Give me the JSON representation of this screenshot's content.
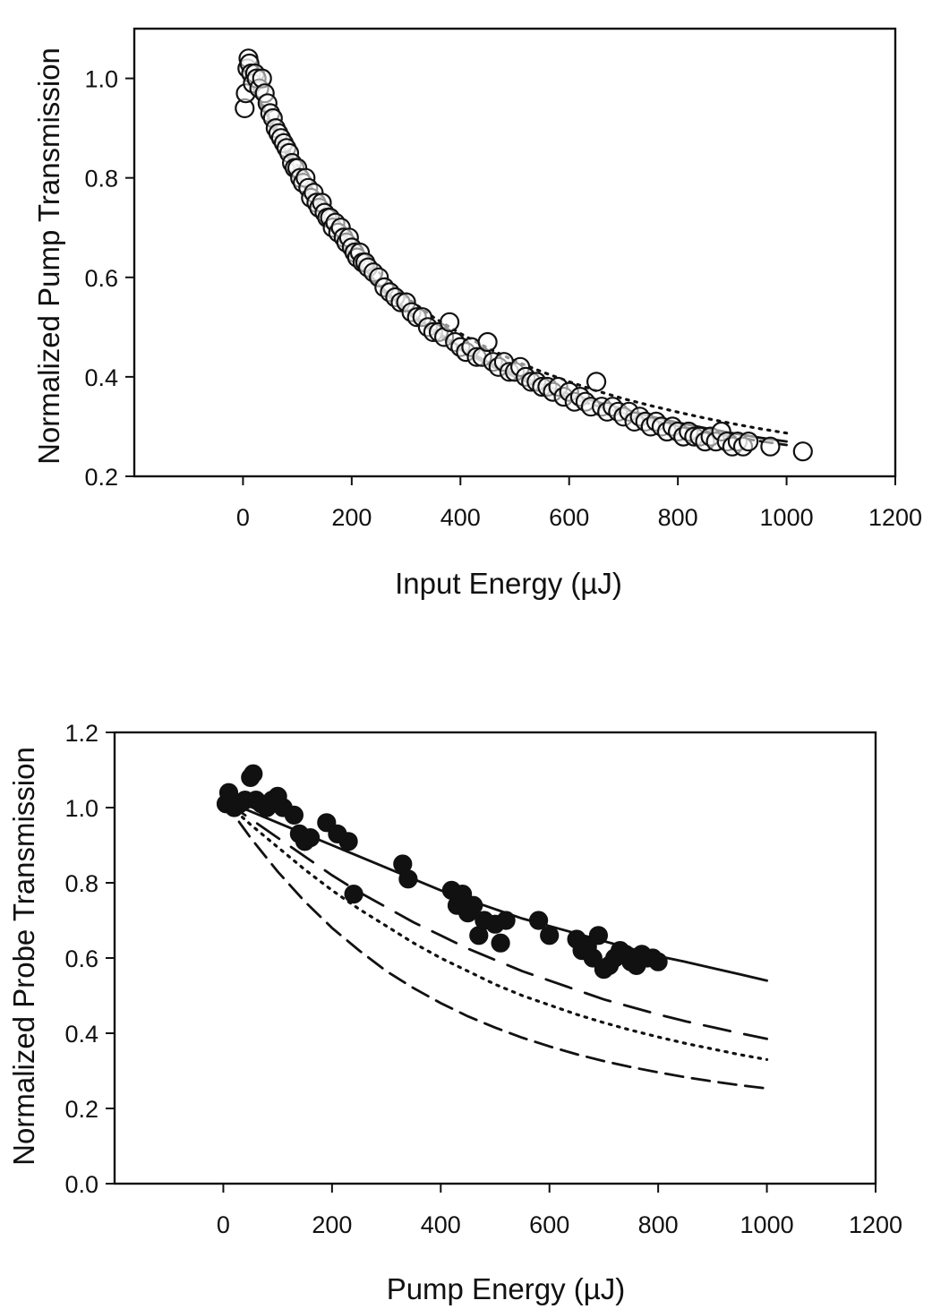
{
  "chart_data": [
    {
      "type": "scatter",
      "title": "",
      "xlabel": "Input Energy (µJ)",
      "ylabel": "Normalized Pump Transmission",
      "xlim": [
        -200,
        1200
      ],
      "ylim": [
        0.2,
        1.1
      ],
      "xticks": [
        "0",
        "200",
        "400",
        "600",
        "800",
        "1000",
        "1200"
      ],
      "yticks": [
        "0.2",
        "0.4",
        "0.6",
        "0.8",
        "1.0"
      ],
      "grid": false,
      "legend": "none",
      "series": [
        {
          "style": "open-circles",
          "x": [
            3,
            5,
            8,
            10,
            12,
            15,
            18,
            22,
            25,
            30,
            35,
            40,
            45,
            50,
            55,
            60,
            65,
            70,
            75,
            80,
            85,
            90,
            95,
            100,
            105,
            110,
            115,
            120,
            125,
            130,
            135,
            140,
            145,
            150,
            155,
            160,
            165,
            170,
            175,
            180,
            185,
            190,
            195,
            200,
            205,
            210,
            215,
            220,
            225,
            230,
            240,
            250,
            260,
            270,
            280,
            290,
            300,
            310,
            320,
            330,
            340,
            350,
            360,
            370,
            380,
            390,
            400,
            410,
            420,
            430,
            440,
            450,
            460,
            470,
            480,
            490,
            500,
            510,
            520,
            530,
            540,
            550,
            560,
            570,
            580,
            590,
            600,
            610,
            620,
            630,
            640,
            650,
            660,
            670,
            680,
            690,
            700,
            710,
            720,
            730,
            740,
            750,
            760,
            770,
            780,
            790,
            800,
            810,
            820,
            830,
            840,
            850,
            860,
            870,
            880,
            890,
            900,
            910,
            920,
            930,
            970,
            1030
          ],
          "y": [
            0.94,
            0.97,
            1.02,
            1.04,
            1.03,
            1.01,
            0.99,
            1.01,
            1.0,
            0.98,
            1.0,
            0.97,
            0.95,
            0.93,
            0.92,
            0.9,
            0.89,
            0.88,
            0.87,
            0.86,
            0.85,
            0.83,
            0.82,
            0.82,
            0.8,
            0.79,
            0.8,
            0.78,
            0.76,
            0.77,
            0.75,
            0.74,
            0.75,
            0.73,
            0.72,
            0.72,
            0.7,
            0.71,
            0.69,
            0.7,
            0.68,
            0.67,
            0.68,
            0.66,
            0.65,
            0.64,
            0.65,
            0.63,
            0.63,
            0.62,
            0.61,
            0.6,
            0.58,
            0.57,
            0.56,
            0.55,
            0.55,
            0.53,
            0.52,
            0.52,
            0.5,
            0.49,
            0.49,
            0.48,
            0.51,
            0.47,
            0.46,
            0.45,
            0.46,
            0.44,
            0.44,
            0.47,
            0.43,
            0.42,
            0.43,
            0.41,
            0.41,
            0.42,
            0.4,
            0.39,
            0.39,
            0.38,
            0.38,
            0.37,
            0.38,
            0.36,
            0.37,
            0.35,
            0.36,
            0.35,
            0.34,
            0.39,
            0.34,
            0.33,
            0.34,
            0.33,
            0.32,
            0.33,
            0.31,
            0.32,
            0.31,
            0.3,
            0.31,
            0.3,
            0.29,
            0.3,
            0.29,
            0.28,
            0.29,
            0.28,
            0.28,
            0.27,
            0.28,
            0.27,
            0.29,
            0.27,
            0.26,
            0.27,
            0.26,
            0.27,
            0.26,
            0.25
          ]
        },
        {
          "style": "solid",
          "x": [
            0,
            50,
            100,
            150,
            200,
            250,
            300,
            350,
            400,
            450,
            500,
            550,
            600,
            650,
            700,
            750,
            800,
            850,
            900,
            950,
            1000
          ],
          "y": [
            1.02,
            0.915,
            0.81,
            0.72,
            0.645,
            0.585,
            0.535,
            0.495,
            0.46,
            0.43,
            0.405,
            0.385,
            0.365,
            0.35,
            0.335,
            0.32,
            0.308,
            0.297,
            0.287,
            0.278,
            0.27
          ]
        },
        {
          "style": "dashed",
          "x": [
            0,
            50,
            100,
            150,
            200,
            250,
            300,
            350,
            400,
            450,
            500,
            550,
            600,
            650,
            700,
            750,
            800,
            850,
            900,
            950,
            1000
          ],
          "y": [
            1.02,
            0.91,
            0.805,
            0.715,
            0.64,
            0.58,
            0.53,
            0.49,
            0.455,
            0.425,
            0.4,
            0.378,
            0.358,
            0.342,
            0.327,
            0.313,
            0.301,
            0.29,
            0.28,
            0.271,
            0.263
          ]
        },
        {
          "style": "dotted",
          "x": [
            0,
            50,
            100,
            150,
            200,
            250,
            300,
            350,
            400,
            450,
            500,
            550,
            600,
            650,
            700,
            750,
            800,
            850,
            900,
            950,
            1000
          ],
          "y": [
            1.02,
            0.92,
            0.825,
            0.74,
            0.67,
            0.61,
            0.56,
            0.52,
            0.487,
            0.458,
            0.432,
            0.41,
            0.39,
            0.372,
            0.356,
            0.342,
            0.329,
            0.317,
            0.306,
            0.296,
            0.287
          ]
        }
      ]
    },
    {
      "type": "scatter",
      "title": "",
      "xlabel": "Pump Energy (µJ)",
      "ylabel": "Normalized Probe Transmission",
      "xlim": [
        -200,
        1200
      ],
      "ylim": [
        0.0,
        1.2
      ],
      "xticks": [
        "0",
        "200",
        "400",
        "600",
        "800",
        "1000",
        "1200"
      ],
      "yticks": [
        "0.0",
        "0.2",
        "0.4",
        "0.6",
        "0.8",
        "1.0",
        "1.2"
      ],
      "grid": false,
      "legend": "none",
      "series": [
        {
          "style": "filled-circles",
          "x": [
            5,
            10,
            15,
            20,
            30,
            40,
            50,
            55,
            60,
            70,
            80,
            90,
            100,
            110,
            130,
            140,
            150,
            160,
            190,
            210,
            230,
            240,
            330,
            340,
            420,
            430,
            440,
            450,
            460,
            470,
            480,
            500,
            510,
            520,
            580,
            600,
            650,
            660,
            670,
            680,
            690,
            700,
            710,
            720,
            730,
            740,
            750,
            760,
            770,
            780,
            790,
            800
          ],
          "y": [
            1.01,
            1.04,
            1.02,
            1.0,
            1.01,
            1.02,
            1.08,
            1.09,
            1.02,
            1.01,
            1.0,
            1.02,
            1.03,
            1.0,
            0.98,
            0.93,
            0.91,
            0.92,
            0.96,
            0.93,
            0.91,
            0.77,
            0.85,
            0.81,
            0.78,
            0.74,
            0.77,
            0.72,
            0.74,
            0.66,
            0.7,
            0.69,
            0.64,
            0.7,
            0.7,
            0.66,
            0.65,
            0.62,
            0.63,
            0.6,
            0.66,
            0.57,
            0.58,
            0.6,
            0.62,
            0.61,
            0.59,
            0.58,
            0.61,
            0.6,
            0.6,
            0.59
          ]
        },
        {
          "style": "solid",
          "x": [
            0,
            50,
            100,
            150,
            200,
            250,
            300,
            350,
            400,
            450,
            500,
            550,
            600,
            650,
            700,
            750,
            800,
            850,
            900,
            950,
            1000
          ],
          "y": [
            1.02,
            0.99,
            0.96,
            0.93,
            0.9,
            0.87,
            0.84,
            0.81,
            0.78,
            0.755,
            0.73,
            0.705,
            0.685,
            0.665,
            0.645,
            0.625,
            0.605,
            0.59,
            0.573,
            0.557,
            0.54
          ]
        },
        {
          "style": "long-dash",
          "x": [
            0,
            50,
            100,
            150,
            200,
            250,
            300,
            350,
            400,
            450,
            500,
            550,
            600,
            650,
            700,
            750,
            800,
            850,
            900,
            950,
            1000
          ],
          "y": [
            1.02,
            0.97,
            0.92,
            0.87,
            0.82,
            0.775,
            0.735,
            0.695,
            0.66,
            0.625,
            0.595,
            0.565,
            0.54,
            0.515,
            0.49,
            0.47,
            0.45,
            0.432,
            0.416,
            0.4,
            0.385
          ]
        },
        {
          "style": "dotted",
          "x": [
            0,
            50,
            100,
            150,
            200,
            250,
            300,
            350,
            400,
            450,
            500,
            550,
            600,
            650,
            700,
            750,
            800,
            850,
            900,
            950,
            1000
          ],
          "y": [
            1.02,
            0.955,
            0.895,
            0.835,
            0.78,
            0.73,
            0.685,
            0.64,
            0.6,
            0.565,
            0.53,
            0.5,
            0.475,
            0.45,
            0.428,
            0.408,
            0.39,
            0.373,
            0.358,
            0.343,
            0.33
          ]
        },
        {
          "style": "medium-dash",
          "x": [
            0,
            50,
            100,
            150,
            200,
            250,
            300,
            350,
            400,
            450,
            500,
            550,
            600,
            650,
            700,
            750,
            800,
            850,
            900,
            950,
            1000
          ],
          "y": [
            1.02,
            0.92,
            0.83,
            0.75,
            0.68,
            0.62,
            0.565,
            0.52,
            0.48,
            0.445,
            0.415,
            0.388,
            0.365,
            0.344,
            0.326,
            0.31,
            0.296,
            0.283,
            0.272,
            0.262,
            0.253
          ]
        }
      ]
    }
  ]
}
